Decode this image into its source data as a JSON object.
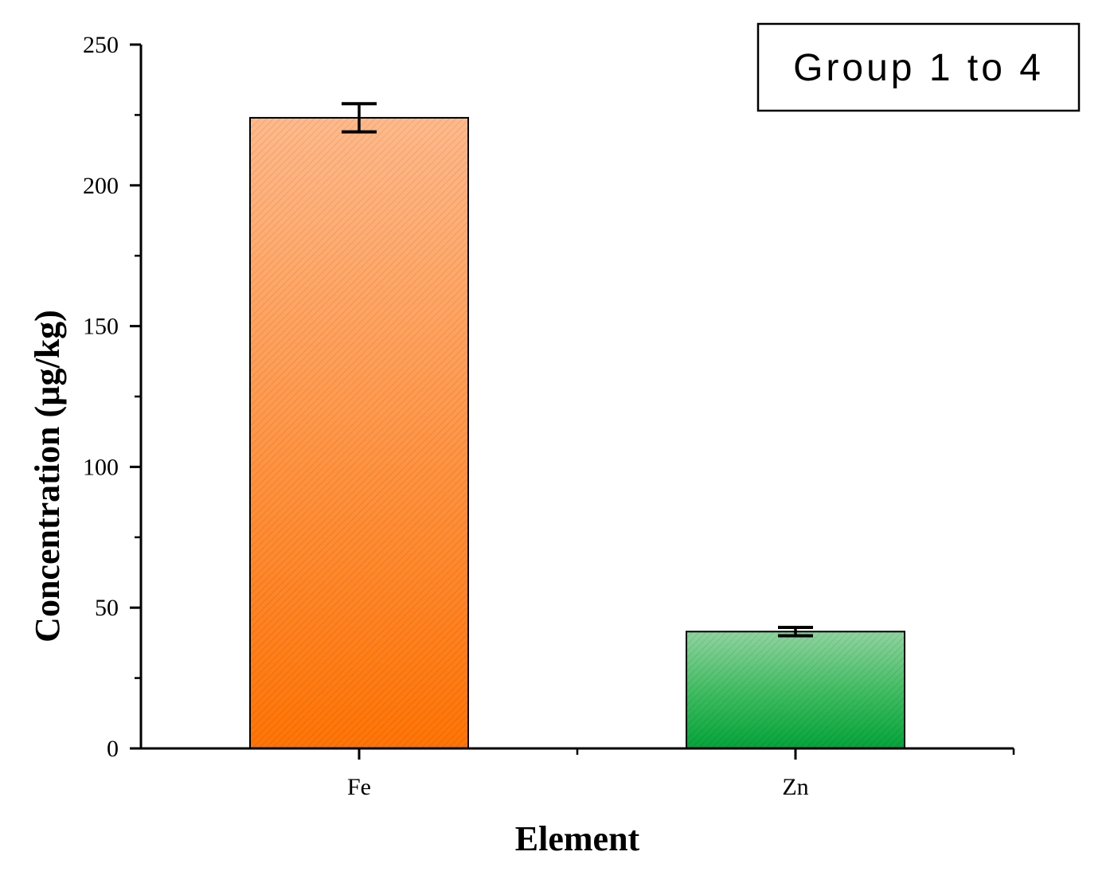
{
  "chart_data": {
    "type": "bar",
    "categories": [
      "Fe",
      "Zn"
    ],
    "values": [
      224,
      41.5
    ],
    "errors": [
      5,
      1.5
    ],
    "colors": [
      "#ff7a1a",
      "#1aaa4a"
    ],
    "xlabel": "Element",
    "ylabel": "Concentration (µg/kg)",
    "ylim": [
      0,
      250
    ],
    "yticks": [
      0,
      50,
      100,
      150,
      200,
      250
    ],
    "yticks_labels": [
      "0",
      "50",
      "100",
      "150",
      "200",
      "250"
    ],
    "legend": {
      "text": "Group 1 to 4",
      "placement": "top-right"
    },
    "grid": false
  }
}
